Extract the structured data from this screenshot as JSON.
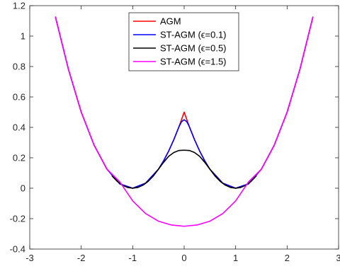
{
  "chart_data": {
    "type": "line",
    "title": "",
    "xlabel": "",
    "ylabel": "",
    "xlim": [
      -3,
      3
    ],
    "ylim": [
      -0.4,
      1.2
    ],
    "xticks": [
      -3,
      -2,
      -1,
      0,
      1,
      2,
      3
    ],
    "yticks": [
      -0.4,
      -0.2,
      0,
      0.2,
      0.4,
      0.6,
      0.8,
      1,
      1.2
    ],
    "xtick_labels": [
      "-3",
      "-2",
      "-1",
      "0",
      "1",
      "2",
      "3"
    ],
    "ytick_labels": [
      "-0.4",
      "-0.2",
      "0",
      "0.2",
      "0.4",
      "0.6",
      "0.8",
      "1",
      "1.2"
    ],
    "grid": false,
    "legend_position": "top-center",
    "series": [
      {
        "name": "AGM",
        "color": "#ff0000",
        "x": [
          -2.5,
          -2.25,
          -2.0,
          -1.75,
          -1.5,
          -1.25,
          -1.0,
          -0.75,
          -0.5,
          -0.4,
          -0.3,
          -0.2,
          -0.1,
          0.0,
          0.1,
          0.2,
          0.3,
          0.4,
          0.5,
          0.75,
          1.0,
          1.25,
          1.5,
          1.75,
          2.0,
          2.25,
          2.5
        ],
        "y": [
          1.125,
          0.7832,
          0.5,
          0.2832,
          0.125,
          0.0282,
          0.0,
          0.0332,
          0.125,
          0.18,
          0.245,
          0.32,
          0.405,
          0.5,
          0.405,
          0.32,
          0.245,
          0.18,
          0.125,
          0.0332,
          0.0,
          0.0282,
          0.125,
          0.2832,
          0.5,
          0.7832,
          1.125
        ]
      },
      {
        "name": "ST-AGM (ϵ=0.1)",
        "color": "#0000ff",
        "x": [
          -2.5,
          -2.25,
          -2.0,
          -1.75,
          -1.5,
          -1.25,
          -1.0,
          -0.75,
          -0.5,
          -0.4,
          -0.3,
          -0.2,
          -0.1,
          -0.05,
          0.0,
          0.05,
          0.1,
          0.2,
          0.3,
          0.4,
          0.5,
          0.75,
          1.0,
          1.25,
          1.5,
          1.75,
          2.0,
          2.25,
          2.5
        ],
        "y": [
          1.125,
          0.7832,
          0.5,
          0.2832,
          0.125,
          0.0282,
          0.0,
          0.0332,
          0.125,
          0.18,
          0.245,
          0.32,
          0.405,
          0.4375,
          0.45,
          0.4375,
          0.405,
          0.32,
          0.245,
          0.18,
          0.125,
          0.0332,
          0.0,
          0.0282,
          0.125,
          0.2832,
          0.5,
          0.7832,
          1.125
        ]
      },
      {
        "name": "ST-AGM (ϵ=0.5)",
        "color": "#000000",
        "x": [
          -1.4,
          -1.3,
          -1.2,
          -1.1,
          -1.0,
          -0.9,
          -0.8,
          -0.7,
          -0.6,
          -0.5,
          -0.4,
          -0.3,
          -0.2,
          -0.1,
          0.0,
          0.1,
          0.2,
          0.3,
          0.4,
          0.5,
          0.6,
          0.7,
          0.8,
          0.9,
          1.0,
          1.1,
          1.2,
          1.3,
          1.4
        ],
        "y": [
          0.08,
          0.045,
          0.02,
          0.005,
          0.0,
          0.005,
          0.02,
          0.045,
          0.08,
          0.125,
          0.17,
          0.21,
          0.235,
          0.248,
          0.25,
          0.248,
          0.235,
          0.21,
          0.17,
          0.125,
          0.08,
          0.045,
          0.02,
          0.005,
          0.0,
          0.005,
          0.02,
          0.045,
          0.08
        ]
      },
      {
        "name": "ST-AGM (ϵ=1.5)",
        "color": "#ff00ff",
        "x": [
          -2.5,
          -2.25,
          -2.0,
          -1.75,
          -1.5,
          -1.25,
          -1.0,
          -0.75,
          -0.5,
          -0.25,
          0.0,
          0.25,
          0.5,
          0.75,
          1.0,
          1.25,
          1.5,
          1.75,
          2.0,
          2.25,
          2.5
        ],
        "y": [
          1.125,
          0.7832,
          0.5,
          0.2832,
          0.125,
          0.0417,
          -0.0833,
          -0.1667,
          -0.2167,
          -0.2417,
          -0.25,
          -0.2417,
          -0.2167,
          -0.1667,
          -0.0833,
          0.0417,
          0.125,
          0.2832,
          0.5,
          0.7832,
          1.125
        ]
      }
    ],
    "legend": [
      {
        "label": "AGM"
      },
      {
        "label": "ST-AGM (ϵ=0.1)"
      },
      {
        "label": "ST-AGM (ϵ=0.5)"
      },
      {
        "label": "ST-AGM (ϵ=1.5)"
      }
    ]
  }
}
